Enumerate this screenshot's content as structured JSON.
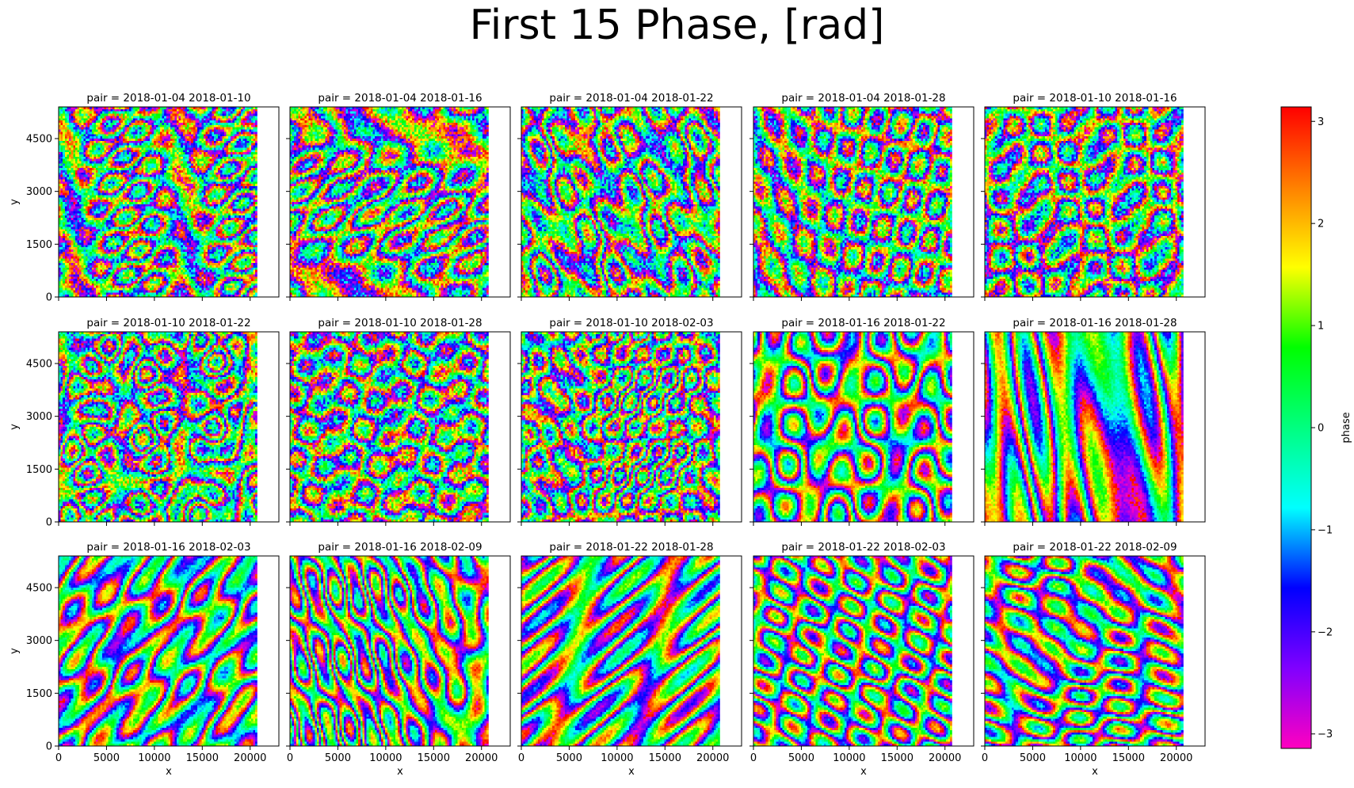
{
  "figure": {
    "title": "First 15 Phase, [rad]"
  },
  "chart_data": {
    "type": "heatmap",
    "title": "First 15 Phase, [rad]",
    "xlabel": "x",
    "ylabel": "y",
    "xlim": [
      0,
      23000
    ],
    "ylim": [
      0,
      5400
    ],
    "x_ticks": [
      "0",
      "5000",
      "10000",
      "15000",
      "20000"
    ],
    "y_ticks": [
      "0",
      "1500",
      "3000",
      "4500"
    ],
    "colorbar": {
      "label": "phase",
      "range": [
        -3.14159,
        3.14159
      ],
      "ticks": [
        "3",
        "2",
        "1",
        "0",
        "−1",
        "−2",
        "−3"
      ],
      "colormap": "gist_rainbow_r",
      "colors": [
        "#ff00bf",
        "#8000ff",
        "#0000ff",
        "#00ffff",
        "#00ff80",
        "#00ff00",
        "#ffff00",
        "#ff8000",
        "#ff0000"
      ]
    },
    "grid": false,
    "panels": [
      {
        "title": "pair = 2018-01-04 2018-01-10"
      },
      {
        "title": "pair = 2018-01-04 2018-01-16"
      },
      {
        "title": "pair = 2018-01-04 2018-01-22"
      },
      {
        "title": "pair = 2018-01-04 2018-01-28"
      },
      {
        "title": "pair = 2018-01-10 2018-01-16"
      },
      {
        "title": "pair = 2018-01-10 2018-01-22"
      },
      {
        "title": "pair = 2018-01-10 2018-01-28"
      },
      {
        "title": "pair = 2018-01-10 2018-02-03"
      },
      {
        "title": "pair = 2018-01-16 2018-01-22"
      },
      {
        "title": "pair = 2018-01-16 2018-01-28"
      },
      {
        "title": "pair = 2018-01-16 2018-02-03"
      },
      {
        "title": "pair = 2018-01-16 2018-02-09"
      },
      {
        "title": "pair = 2018-01-22 2018-01-28"
      },
      {
        "title": "pair = 2018-01-22 2018-02-03"
      },
      {
        "title": "pair = 2018-01-22 2018-02-09"
      }
    ]
  }
}
